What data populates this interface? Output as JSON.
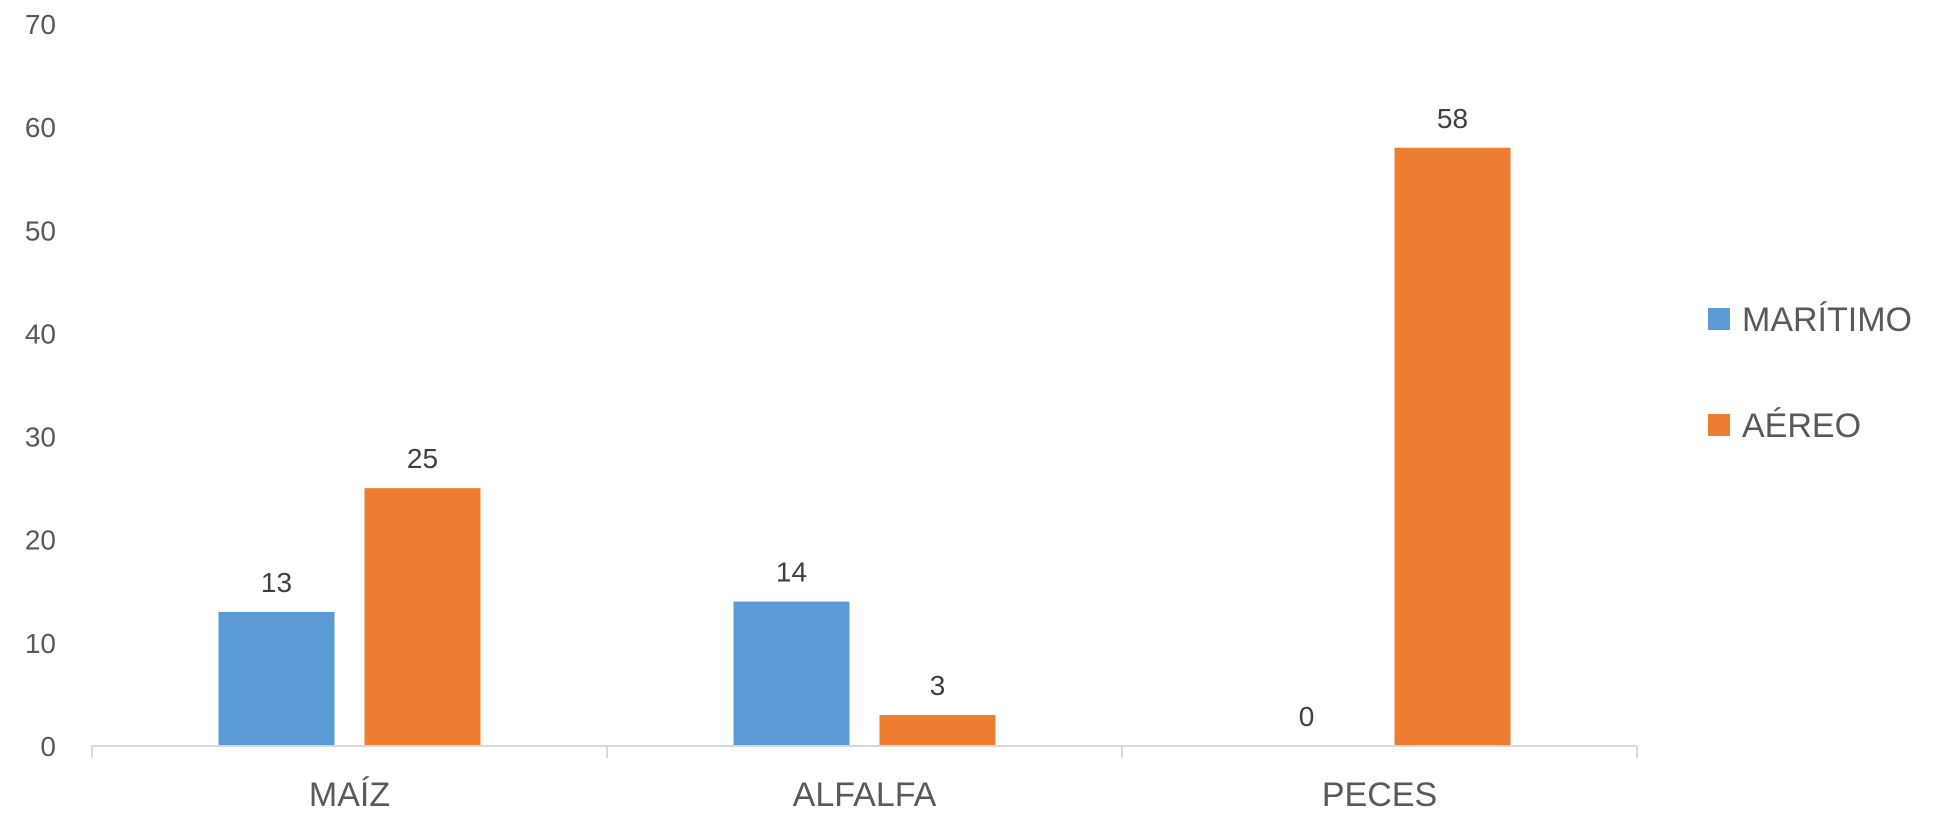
{
  "chart_data": {
    "type": "bar",
    "title": "",
    "xlabel": "",
    "ylabel": "",
    "categories": [
      "MAÍZ",
      "ALFALFA",
      "PECES"
    ],
    "series": [
      {
        "name": "MARÍTIMO",
        "color": "#5B9BD5",
        "values": [
          13,
          14,
          0
        ]
      },
      {
        "name": "AÉREO",
        "color": "#ED7D31",
        "values": [
          25,
          3,
          58
        ]
      }
    ],
    "ylim": [
      0,
      70
    ],
    "yticks": [
      0,
      10,
      20,
      30,
      40,
      50,
      60,
      70
    ],
    "grid": false,
    "legend": "right",
    "data_labels": true
  }
}
